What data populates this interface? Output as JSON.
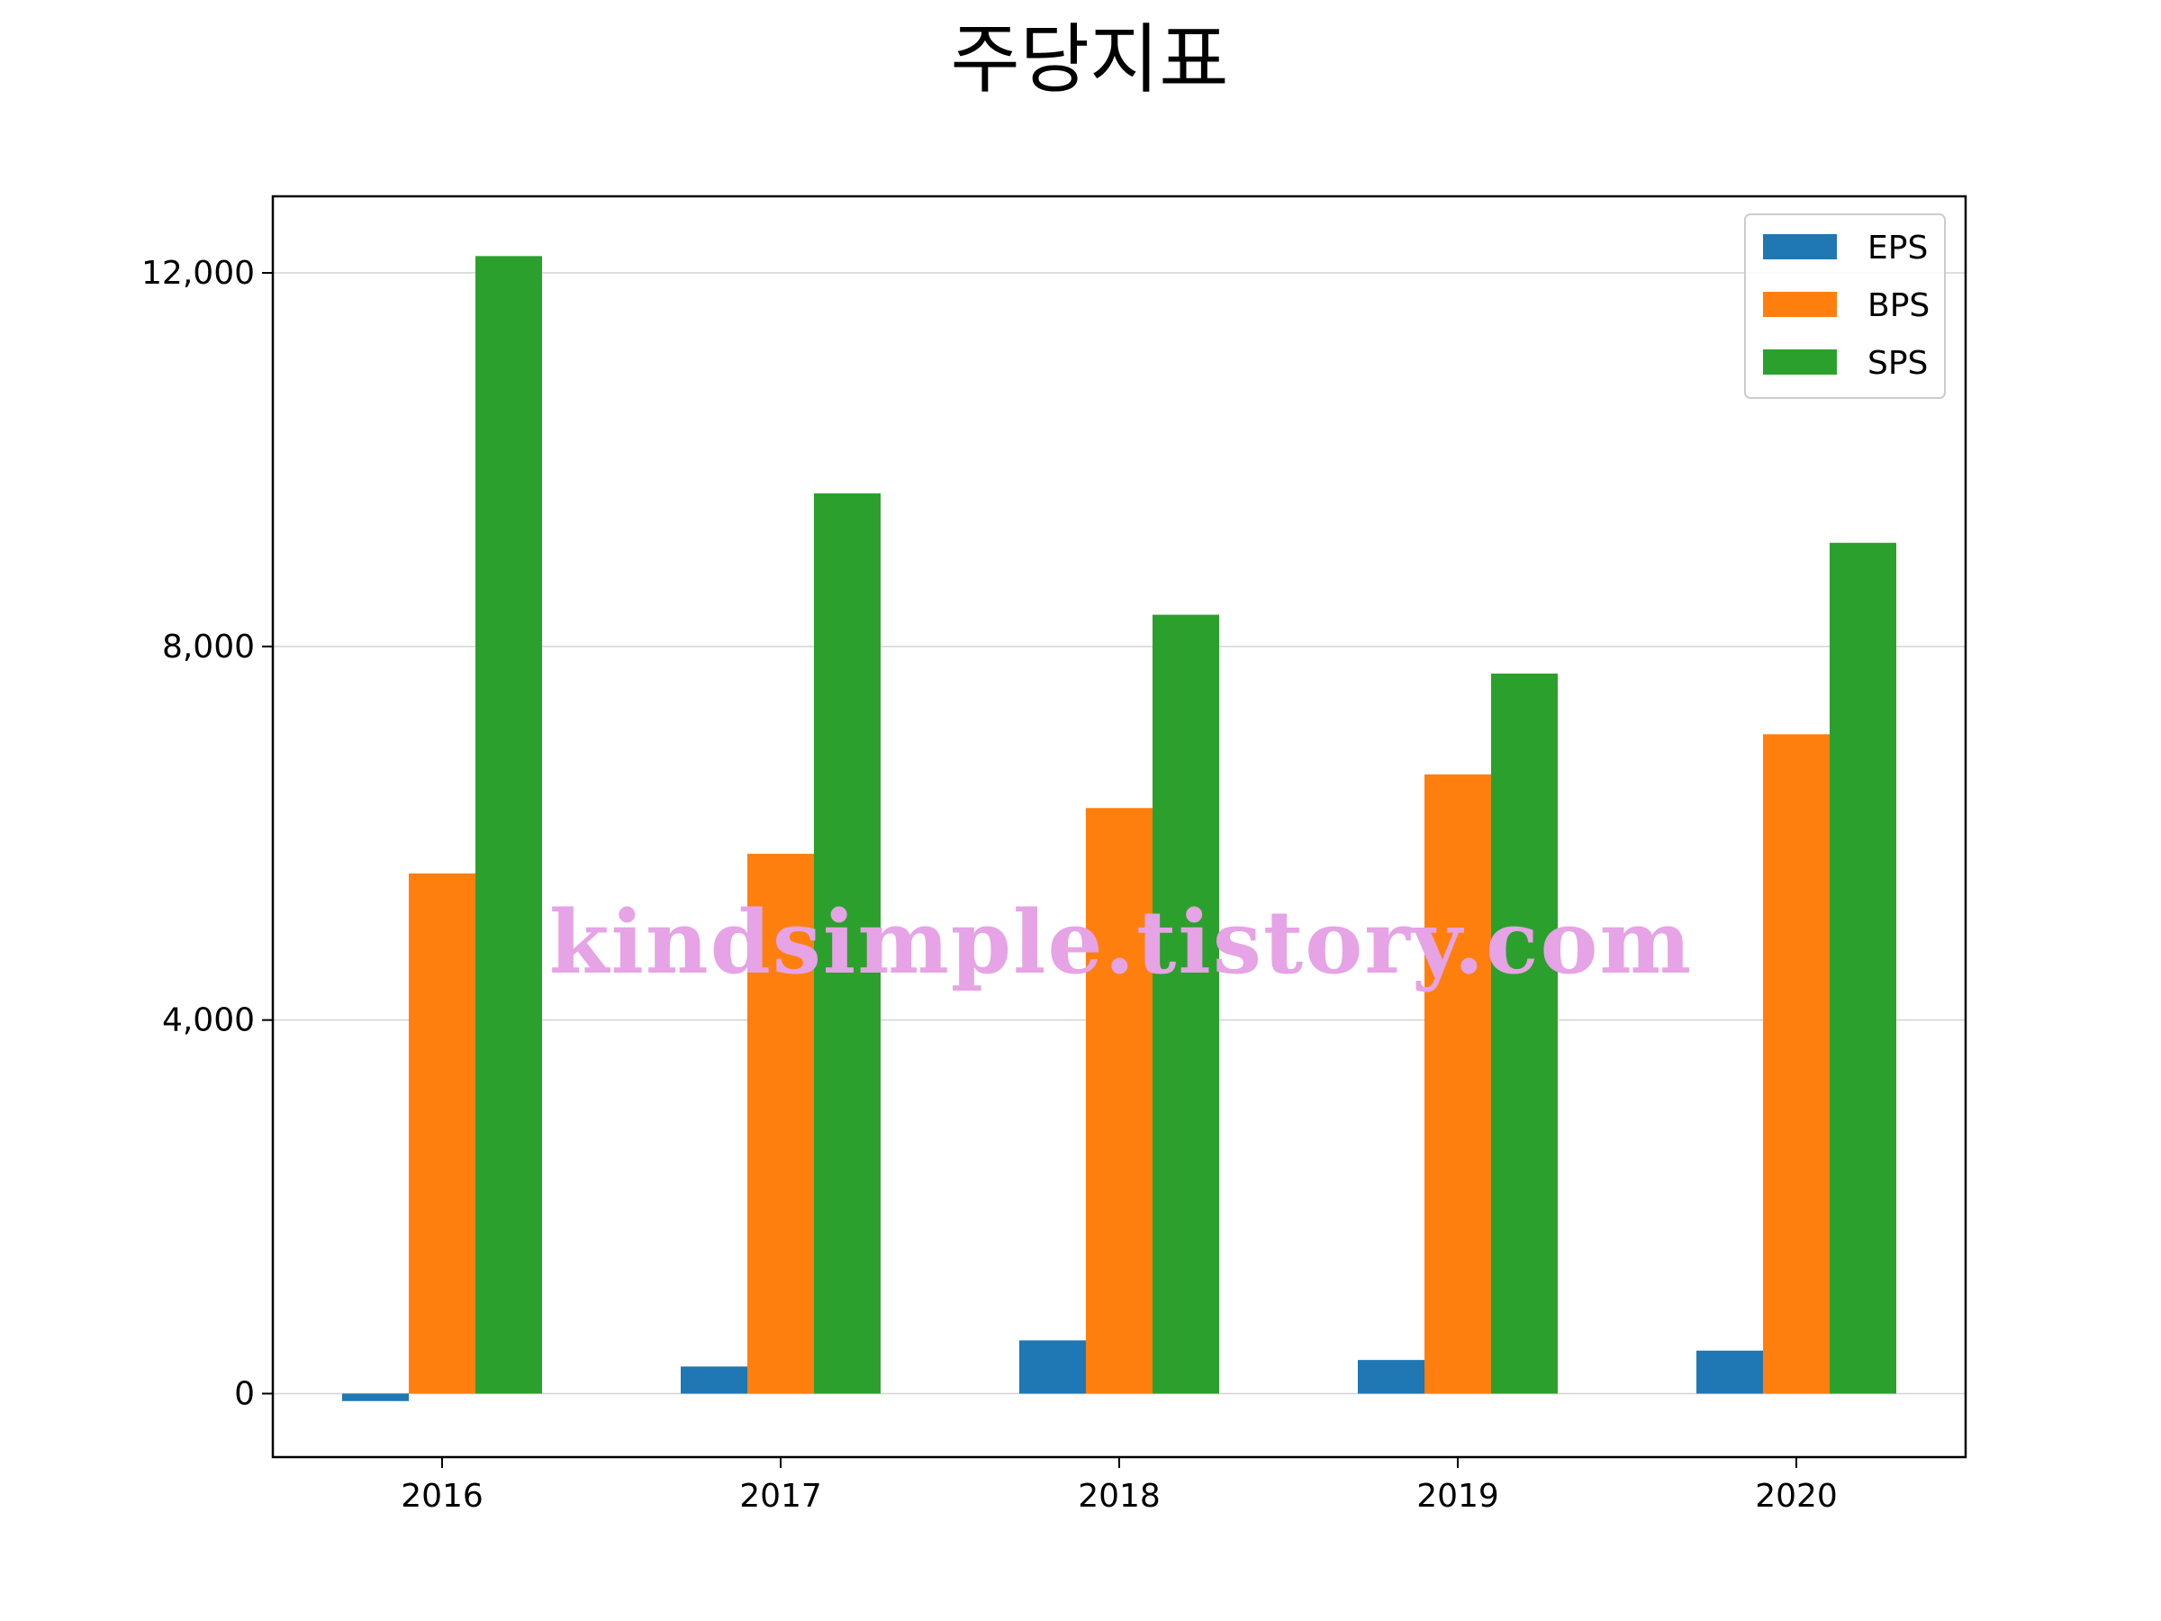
{
  "chart_data": {
    "type": "bar",
    "title": "주당지표",
    "categories": [
      "2016",
      "2017",
      "2018",
      "2019",
      "2020"
    ],
    "series": [
      {
        "name": "EPS",
        "color": "#1f77b4",
        "values": [
          -80,
          290,
          570,
          360,
          460
        ]
      },
      {
        "name": "BPS",
        "color": "#ff7f0e",
        "values": [
          5570,
          5780,
          6270,
          6630,
          7060
        ]
      },
      {
        "name": "SPS",
        "color": "#2ca02c",
        "values": [
          12180,
          9640,
          8340,
          7710,
          9110
        ]
      }
    ],
    "ylim": [
      -680,
      12820
    ],
    "yticks": [
      0,
      4000,
      8000,
      12000
    ],
    "ytick_labels": [
      "0",
      "4,000",
      "8,000",
      "12,000"
    ],
    "grid": "y",
    "legend_position": "top-right",
    "watermark": "kindsimple.tistory.com",
    "watermark_color": "#e6a3e6"
  }
}
